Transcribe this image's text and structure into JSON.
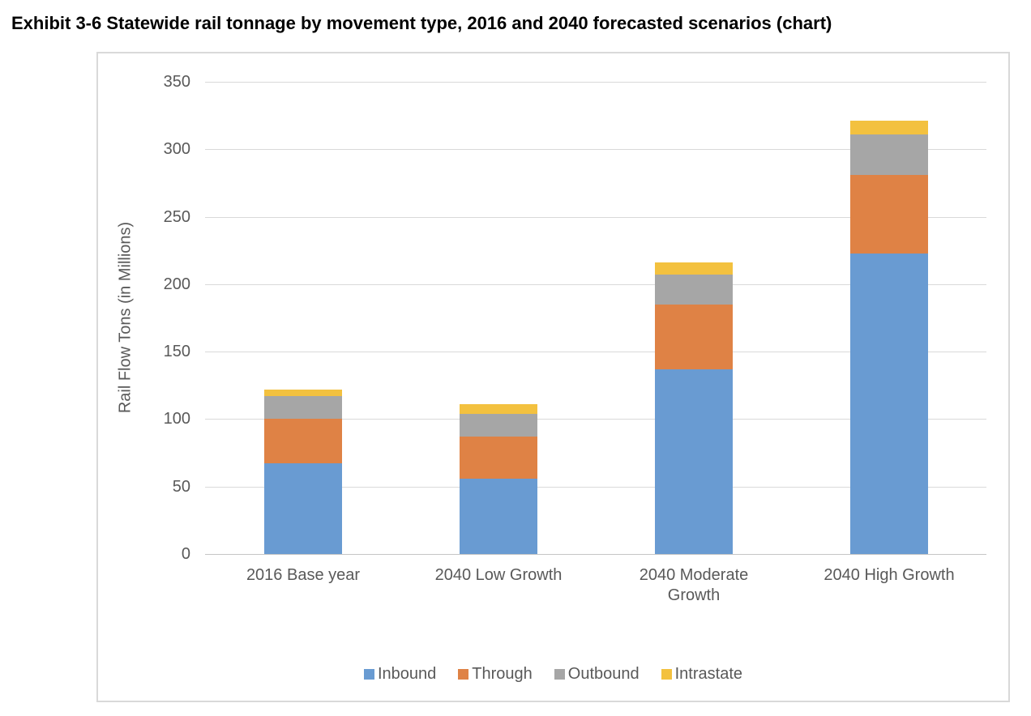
{
  "title": "Exhibit 3-6 Statewide rail tonnage by movement type, 2016 and 2040 forecasted scenarios (chart)",
  "chart_data": {
    "type": "bar",
    "stacked": true,
    "title": "",
    "xlabel": "",
    "ylabel": "Rail Flow Tons (in Millions)",
    "ylim": [
      0,
      350
    ],
    "ytick_step": 50,
    "yticks": [
      "350",
      "300",
      "250",
      "200",
      "150",
      "100",
      "50",
      "0"
    ],
    "grid": true,
    "legend_position": "bottom",
    "categories": [
      "2016 Base year",
      "2040 Low Growth",
      "2040 Moderate Growth",
      "2040 High Growth"
    ],
    "series": [
      {
        "name": "Inbound",
        "color": "#699BD2",
        "values": [
          67,
          56,
          137,
          223
        ]
      },
      {
        "name": "Through",
        "color": "#DF8245",
        "values": [
          33,
          31,
          48,
          58
        ]
      },
      {
        "name": "Outbound",
        "color": "#A6A6A6",
        "values": [
          17,
          17,
          22,
          30
        ]
      },
      {
        "name": "Intrastate",
        "color": "#F3C13F",
        "values": [
          5,
          7,
          9,
          10
        ]
      }
    ],
    "totals": [
      122,
      111,
      216,
      321
    ]
  },
  "style": {
    "grid_color": "#D9D9D9",
    "axis_line_color": "#C6C6C6",
    "frame_color": "#D9D9D9",
    "text_color": "#595959",
    "title_color": "#000000"
  }
}
